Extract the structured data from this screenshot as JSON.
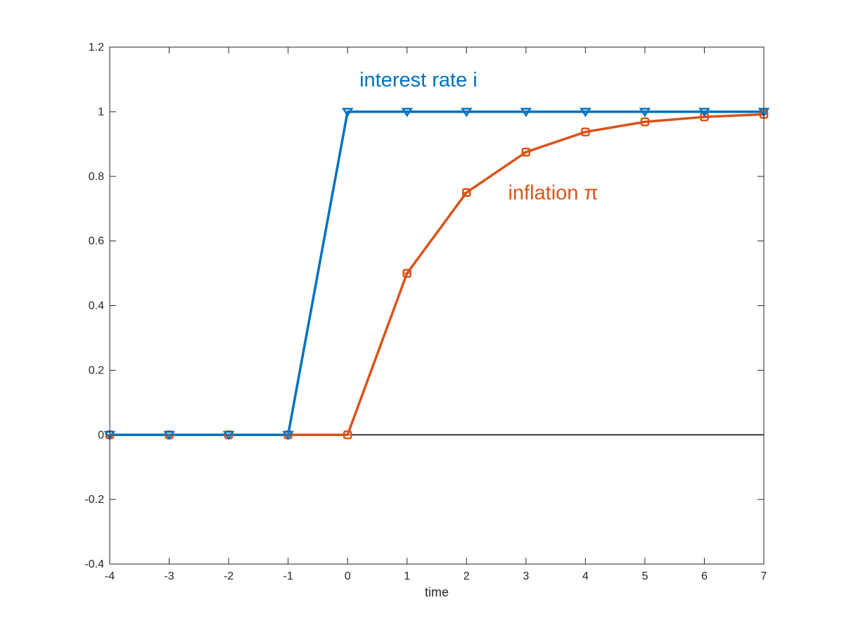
{
  "chart_data": {
    "type": "line",
    "title": "",
    "xlabel": "time",
    "ylabel": "",
    "xlim": [
      -4,
      7
    ],
    "ylim": [
      -0.4,
      1.2
    ],
    "xticks": [
      "-4",
      "-3",
      "-2",
      "-1",
      "0",
      "1",
      "2",
      "3",
      "4",
      "5",
      "6",
      "7"
    ],
    "yticks": [
      "-0.4",
      "-0.2",
      "0",
      "0.2",
      "0.4",
      "0.6",
      "0.8",
      "1",
      "1.2"
    ],
    "grid": false,
    "zero_line": true,
    "x": [
      -4,
      -3,
      -2,
      -1,
      0,
      1,
      2,
      3,
      4,
      5,
      6,
      7
    ],
    "series": [
      {
        "label": "interest rate i",
        "color": "#0072BD",
        "marker": "triangle-down",
        "values": [
          0,
          0,
          0,
          0,
          1,
          1,
          1,
          1,
          1,
          1,
          1,
          1
        ]
      },
      {
        "label": "inflation π",
        "color": "#D95319",
        "marker": "square",
        "values": [
          0,
          0,
          0,
          0,
          0,
          0.5,
          0.75,
          0.875,
          0.9375,
          0.96875,
          0.984,
          0.992
        ]
      }
    ],
    "annotations": [
      {
        "text": "interest rate i",
        "series": 0,
        "x": 0.2,
        "y": 1.1
      },
      {
        "text": "inflation π",
        "series": 1,
        "x": 2.7,
        "y": 0.75
      }
    ]
  }
}
